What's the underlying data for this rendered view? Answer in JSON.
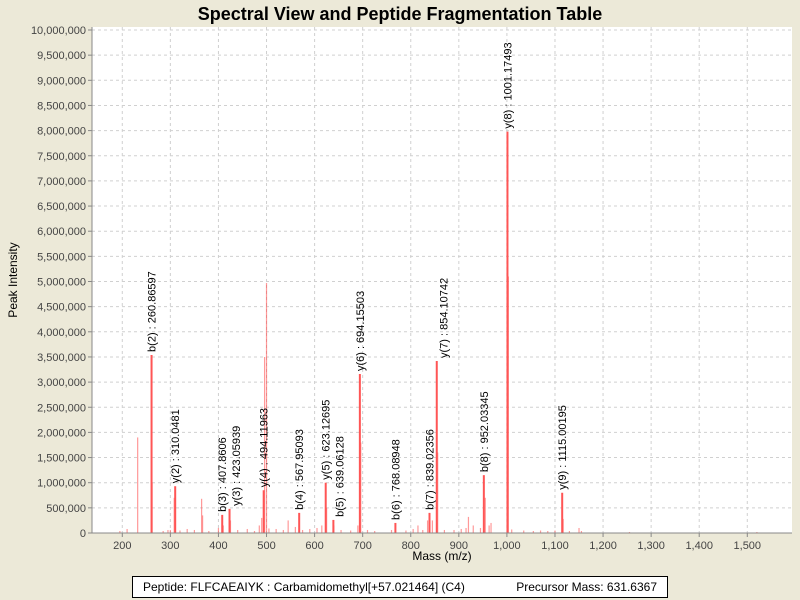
{
  "chart_data": {
    "type": "bar",
    "title": "Spectral View and Peptide Fragmentation Table",
    "xlabel": "Mass (m/z)",
    "ylabel": "Peak Intensity",
    "xlim": [
      137,
      1593
    ],
    "ylim": [
      0,
      10000000
    ],
    "x_ticks": [
      200,
      300,
      400,
      500,
      600,
      700,
      800,
      900,
      1000,
      1100,
      1200,
      1300,
      1400,
      1500
    ],
    "x_tick_labels": [
      "200",
      "300",
      "400",
      "500",
      "600",
      "700",
      "800",
      "900",
      "1,000",
      "1,100",
      "1,200",
      "1,300",
      "1,400",
      "1,500"
    ],
    "y_ticks": [
      0,
      500000,
      1000000,
      1500000,
      2000000,
      2500000,
      3000000,
      3500000,
      4000000,
      4500000,
      5000000,
      5500000,
      6000000,
      6500000,
      7000000,
      7500000,
      8000000,
      8500000,
      9000000,
      9500000,
      10000000
    ],
    "y_tick_labels": [
      "0",
      "500,000",
      "1,000,000",
      "1,500,000",
      "2,000,000",
      "2,500,000",
      "3,000,000",
      "3,500,000",
      "4,000,000",
      "4,500,000",
      "5,000,000",
      "5,500,000",
      "6,000,000",
      "6,500,000",
      "7,000,000",
      "7,500,000",
      "8,000,000",
      "8,500,000",
      "9,000,000",
      "9,500,000",
      "10,000,000"
    ],
    "grid": true,
    "peak_color": "#ff5555",
    "annotated_peaks": [
      {
        "mz": 260.86597,
        "intensity": 3540000,
        "label": "b(2) : 260.86597"
      },
      {
        "mz": 310.0481,
        "intensity": 930000,
        "label": "y(2) : 310.0481"
      },
      {
        "mz": 407.8606,
        "intensity": 360000,
        "label": "b(3) : 407.8606"
      },
      {
        "mz": 423.05939,
        "intensity": 480000,
        "label": "y(3) : 423.05939"
      },
      {
        "mz": 494.11963,
        "intensity": 850000,
        "label": "y(4) : 494.11963"
      },
      {
        "mz": 567.95093,
        "intensity": 400000,
        "label": "b(4) : 567.95093"
      },
      {
        "mz": 623.12695,
        "intensity": 1000000,
        "label": "y(5) : 623.12695"
      },
      {
        "mz": 639.06128,
        "intensity": 260000,
        "label": "b(5) : 639.06128"
      },
      {
        "mz": 694.15503,
        "intensity": 3160000,
        "label": "y(6) : 694.15503"
      },
      {
        "mz": 768.08948,
        "intensity": 200000,
        "label": "b(6) : 768.08948"
      },
      {
        "mz": 839.02356,
        "intensity": 400000,
        "label": "b(7) : 839.02356"
      },
      {
        "mz": 854.10742,
        "intensity": 3420000,
        "label": "y(7) : 854.10742"
      },
      {
        "mz": 952.03345,
        "intensity": 1150000,
        "label": "b(8) : 952.03345"
      },
      {
        "mz": 1001.17493,
        "intensity": 7980000,
        "label": "y(8) : 1001.17493"
      },
      {
        "mz": 1115.00195,
        "intensity": 800000,
        "label": "y(9) : 1115.00195"
      }
    ],
    "other_peaks": [
      [
        195,
        40000
      ],
      [
        210,
        80000
      ],
      [
        232,
        1900000
      ],
      [
        262,
        1000000
      ],
      [
        285,
        40000
      ],
      [
        295,
        60000
      ],
      [
        300,
        60000
      ],
      [
        308,
        700000
      ],
      [
        320,
        50000
      ],
      [
        335,
        80000
      ],
      [
        350,
        60000
      ],
      [
        365,
        680000
      ],
      [
        367,
        350000
      ],
      [
        380,
        40000
      ],
      [
        400,
        100000
      ],
      [
        410,
        150000
      ],
      [
        425,
        250000
      ],
      [
        440,
        60000
      ],
      [
        460,
        80000
      ],
      [
        475,
        40000
      ],
      [
        485,
        150000
      ],
      [
        490,
        300000
      ],
      [
        496,
        3500000
      ],
      [
        500,
        4970000
      ],
      [
        505,
        90000
      ],
      [
        520,
        80000
      ],
      [
        535,
        60000
      ],
      [
        545,
        250000
      ],
      [
        560,
        120000
      ],
      [
        575,
        60000
      ],
      [
        590,
        80000
      ],
      [
        605,
        100000
      ],
      [
        615,
        150000
      ],
      [
        625,
        500000
      ],
      [
        640,
        150000
      ],
      [
        655,
        60000
      ],
      [
        675,
        50000
      ],
      [
        690,
        150000
      ],
      [
        696,
        1800000
      ],
      [
        710,
        60000
      ],
      [
        725,
        40000
      ],
      [
        760,
        60000
      ],
      [
        790,
        50000
      ],
      [
        805,
        80000
      ],
      [
        815,
        150000
      ],
      [
        825,
        60000
      ],
      [
        835,
        250000
      ],
      [
        845,
        250000
      ],
      [
        856,
        1600000
      ],
      [
        870,
        60000
      ],
      [
        890,
        60000
      ],
      [
        905,
        80000
      ],
      [
        915,
        100000
      ],
      [
        920,
        320000
      ],
      [
        930,
        150000
      ],
      [
        945,
        100000
      ],
      [
        955,
        700000
      ],
      [
        963,
        150000
      ],
      [
        967,
        200000
      ],
      [
        1003,
        5100000
      ],
      [
        1010,
        70000
      ],
      [
        1035,
        50000
      ],
      [
        1055,
        40000
      ],
      [
        1070,
        50000
      ],
      [
        1085,
        40000
      ],
      [
        1100,
        50000
      ],
      [
        1117,
        280000
      ],
      [
        1130,
        40000
      ],
      [
        1150,
        100000
      ],
      [
        1155,
        40000
      ],
      [
        1255,
        20000
      ],
      [
        1520,
        20000
      ]
    ]
  },
  "footer": {
    "peptide": "Peptide: FLFCAEAIYK : Carbamidomethyl[+57.021464] (C4)",
    "precursor": "Precursor Mass: 631.6367"
  }
}
